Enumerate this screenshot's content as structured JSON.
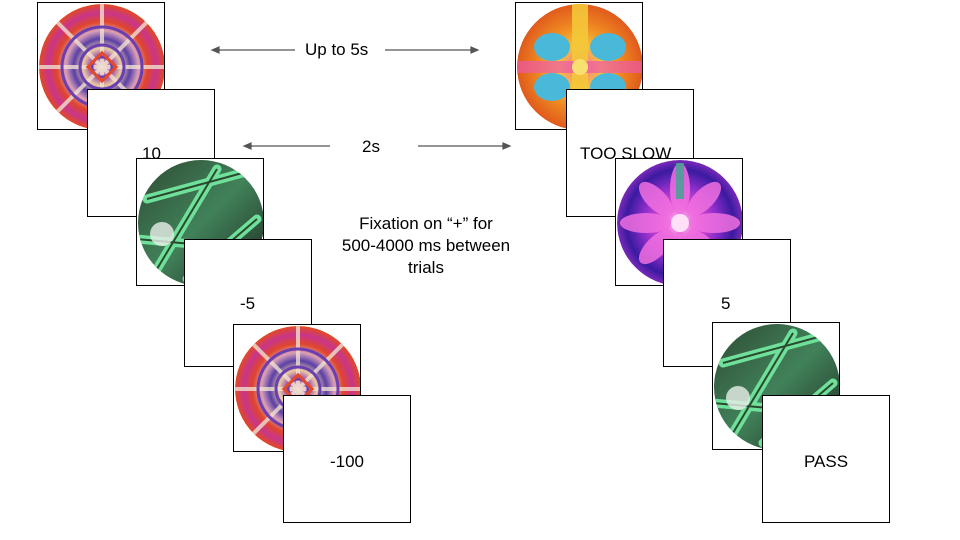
{
  "timing": {
    "stimulus_duration": "Up to 5s",
    "feedback_duration": "2s"
  },
  "fixation_note": {
    "line1": "Fixation on “+” for",
    "line2": "500-4000 ms between",
    "line3": "trials"
  },
  "left_sequence": {
    "feedback": [
      "10",
      "-5",
      "-100"
    ]
  },
  "right_sequence": {
    "feedback": [
      "TOO SLOW",
      "5",
      "PASS"
    ]
  },
  "stimulus_images": [
    "mandala-red-purple",
    "lattice-green",
    "mandala-red-purple",
    "butterfly-orange-blue",
    "flower-magenta",
    "lattice-green"
  ],
  "colors": {
    "arrow": "#555555",
    "border": "#000000"
  }
}
